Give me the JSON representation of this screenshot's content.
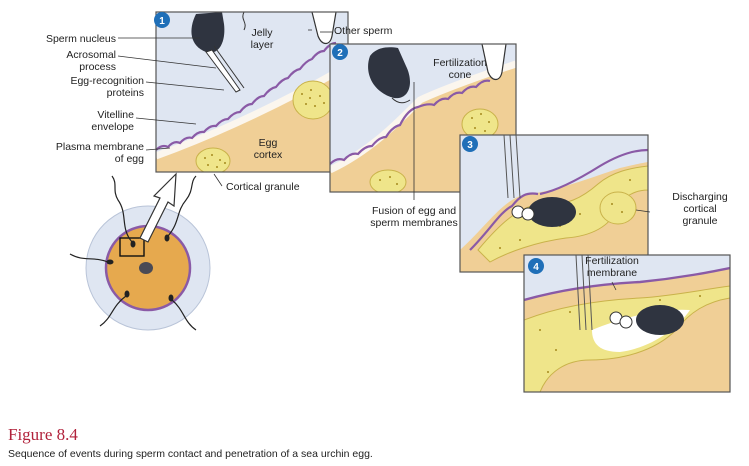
{
  "figure": {
    "title": "Figure 8.4",
    "caption": "Sequence of events during sperm contact and penetration of a sea urchin egg."
  },
  "panels": [
    {
      "number": "1"
    },
    {
      "number": "2"
    },
    {
      "number": "3"
    },
    {
      "number": "4"
    }
  ],
  "labels": {
    "sperm_nucleus": "Sperm nucleus",
    "acrosomal_1": "Acrosomal",
    "acrosomal_2": "process",
    "egg_recog_1": "Egg-recognition",
    "egg_recog_2": "proteins",
    "vitelline_1": "Vitelline",
    "vitelline_2": "envelope",
    "plasma_1": "Plasma membrane",
    "plasma_2": "of egg",
    "jelly_1": "Jelly",
    "jelly_2": "layer",
    "other_sperm": "Other sperm",
    "egg_cortex_1": "Egg",
    "egg_cortex_2": "cortex",
    "cortical_granule": "Cortical granule",
    "fert_cone_1": "Fertilization",
    "fert_cone_2": "cone",
    "fusion_1": "Fusion of egg and",
    "fusion_2": "sperm membranes",
    "discharging_1": "Discharging",
    "discharging_2": "cortical",
    "discharging_3": "granule",
    "fert_membrane_1": "Fertilization",
    "fert_membrane_2": "membrane"
  },
  "colors": {
    "jelly": "#dfe6f2",
    "cytoplasm": "#f0cf96",
    "vitelline": "#8a5aa6",
    "granule": "#efe58a",
    "sperm": "#2f3440",
    "panel_border": "#555555",
    "badge": "#1f6fb8",
    "caption_title": "#b1223b"
  }
}
